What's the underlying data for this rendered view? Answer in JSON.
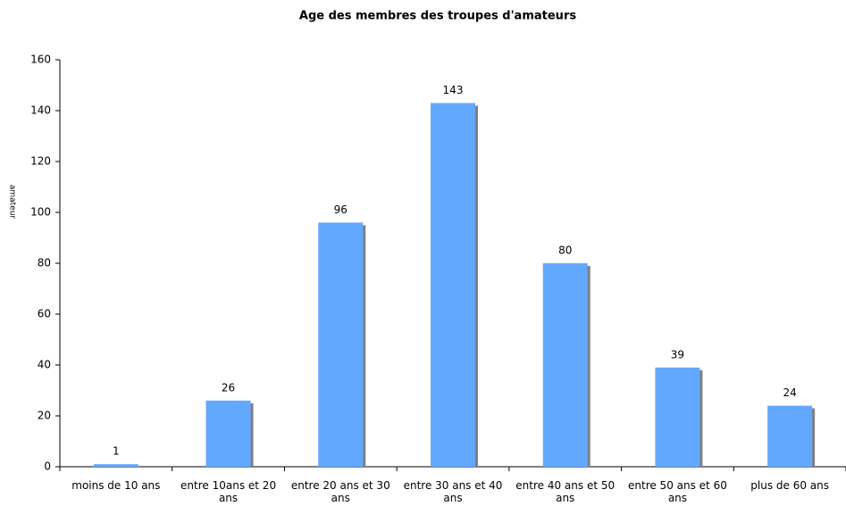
{
  "chart_data": {
    "type": "bar",
    "title": "Age des membres des troupes  d'amateurs",
    "y_label": "amateur",
    "categories": [
      "moins de 10 ans",
      "entre 10ans et 20 ans",
      "entre 20 ans et 30 ans",
      "entre 30 ans et 40 ans",
      "entre 40 ans et 50 ans",
      "entre 50 ans et 60 ans",
      "plus de 60 ans"
    ],
    "values": [
      1,
      26,
      96,
      143,
      80,
      39,
      24
    ],
    "color": "#63a8ff",
    "ylim": [
      0,
      160
    ],
    "yticks": [
      0,
      20,
      40,
      60,
      80,
      100,
      120,
      140,
      160
    ],
    "grid": false
  }
}
